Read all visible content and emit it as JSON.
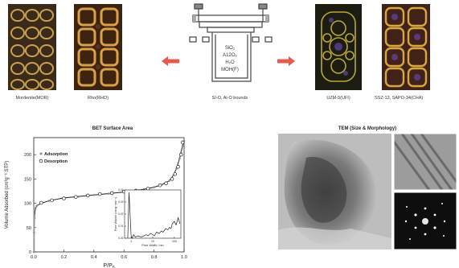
{
  "frameworks": [
    {
      "id": "mor",
      "label": "Mordenite(MOR)",
      "colors": {
        "bg": "#3a2a1a",
        "ring": "#c9a050"
      }
    },
    {
      "id": "rho",
      "label": "Rho(RHO)",
      "colors": {
        "bg": "#3e2410",
        "ring": "#d9a04a"
      }
    },
    {
      "id": "ufi",
      "label": "UZM-5(UFI)",
      "colors": {
        "bg": "#1c1d10",
        "ring": "#b9a638"
      }
    },
    {
      "id": "cha",
      "label": "SSZ-13, SAPO-34(CHA)",
      "colors": {
        "bg": "#40221a",
        "ring": "#d6a83c"
      }
    }
  ],
  "reactor": {
    "lines": [
      "SiO₂",
      "A12O₂",
      "H₂O",
      "MOH(F)"
    ],
    "caption": "SI-O, Al-O bounds"
  },
  "arrow_color": "#e55a4a",
  "bet": {
    "chart_data": {
      "type": "line",
      "title": "BET Surface Area",
      "xlabel": "P/P0",
      "ylabel": "Volume Adsorbed (cm³g⁻¹ STP)",
      "xlim": [
        0.0,
        1.0
      ],
      "ylim": [
        0,
        235
      ],
      "x_ticks": [
        "0.0",
        "0.2",
        "0.4",
        "0.6",
        "0.8",
        "1.0"
      ],
      "y_ticks": [
        "0",
        "50",
        "100",
        "150",
        "200"
      ],
      "legend": [
        "Adsorption",
        "Desorption"
      ],
      "legend_position": "top-left",
      "series": [
        {
          "name": "Adsorption",
          "x": [
            0.0,
            0.002,
            0.005,
            0.01,
            0.02,
            0.05,
            0.1,
            0.2,
            0.3,
            0.4,
            0.5,
            0.6,
            0.7,
            0.8,
            0.85,
            0.9,
            0.93,
            0.95,
            0.97,
            0.98,
            0.99,
            1.0
          ],
          "values": [
            0,
            40,
            70,
            88,
            95,
            100,
            105,
            111,
            114,
            117,
            120,
            123,
            127,
            133,
            138,
            146,
            158,
            172,
            192,
            205,
            218,
            228
          ]
        },
        {
          "name": "Desorption",
          "x": [
            0.05,
            0.12,
            0.2,
            0.28,
            0.36,
            0.44,
            0.52,
            0.6,
            0.68,
            0.76,
            0.84,
            0.88,
            0.92,
            0.94,
            0.96,
            0.98,
            0.99
          ],
          "values": [
            101,
            106,
            110,
            113,
            116,
            119,
            121,
            124,
            126,
            130,
            137,
            141,
            150,
            160,
            175,
            200,
            225
          ]
        }
      ],
      "inset": {
        "type": "line",
        "xlabel": "Pore Width / nm",
        "ylabel": "Pore Volume (cm³g⁻¹nm⁻¹)",
        "x_scale": "log",
        "xlim": [
          0.5,
          200
        ],
        "ylim": [
          0,
          0.04
        ],
        "x_ticks": [
          "1",
          "10",
          "100"
        ],
        "y_ticks": [
          "0.00",
          "0.01",
          "0.02",
          "0.03",
          "0.04"
        ],
        "x": [
          0.7,
          0.8,
          1.0,
          1.1,
          1.3,
          1.6,
          2,
          3,
          4,
          5,
          6,
          8,
          10,
          12,
          15,
          20,
          25,
          30,
          40,
          50,
          60,
          70,
          80,
          100,
          120,
          150,
          180
        ],
        "values": [
          0.0,
          0.038,
          0.002,
          0.0,
          0.003,
          0.001,
          0.002,
          0.001,
          0.002,
          0.003,
          0.002,
          0.004,
          0.003,
          0.002,
          0.005,
          0.004,
          0.006,
          0.005,
          0.008,
          0.007,
          0.009,
          0.008,
          0.012,
          0.014,
          0.011,
          0.017,
          0.012
        ]
      }
    }
  },
  "tem": {
    "title": "TEM (Size & Morphology)"
  }
}
